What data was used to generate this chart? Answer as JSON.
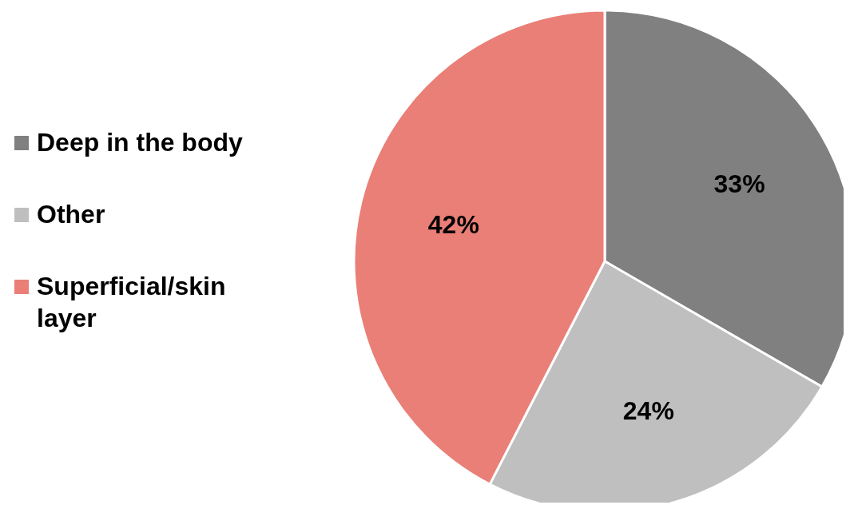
{
  "chart_data": {
    "type": "pie",
    "categories": [
      "Deep in the body",
      "Other",
      "Superficial/skin layer"
    ],
    "values": [
      33,
      24,
      42
    ],
    "colors": [
      "#808080",
      "#bfbfbf",
      "#e97f77"
    ],
    "value_labels": [
      "33%",
      "24%",
      "42%"
    ],
    "legend": "left"
  }
}
